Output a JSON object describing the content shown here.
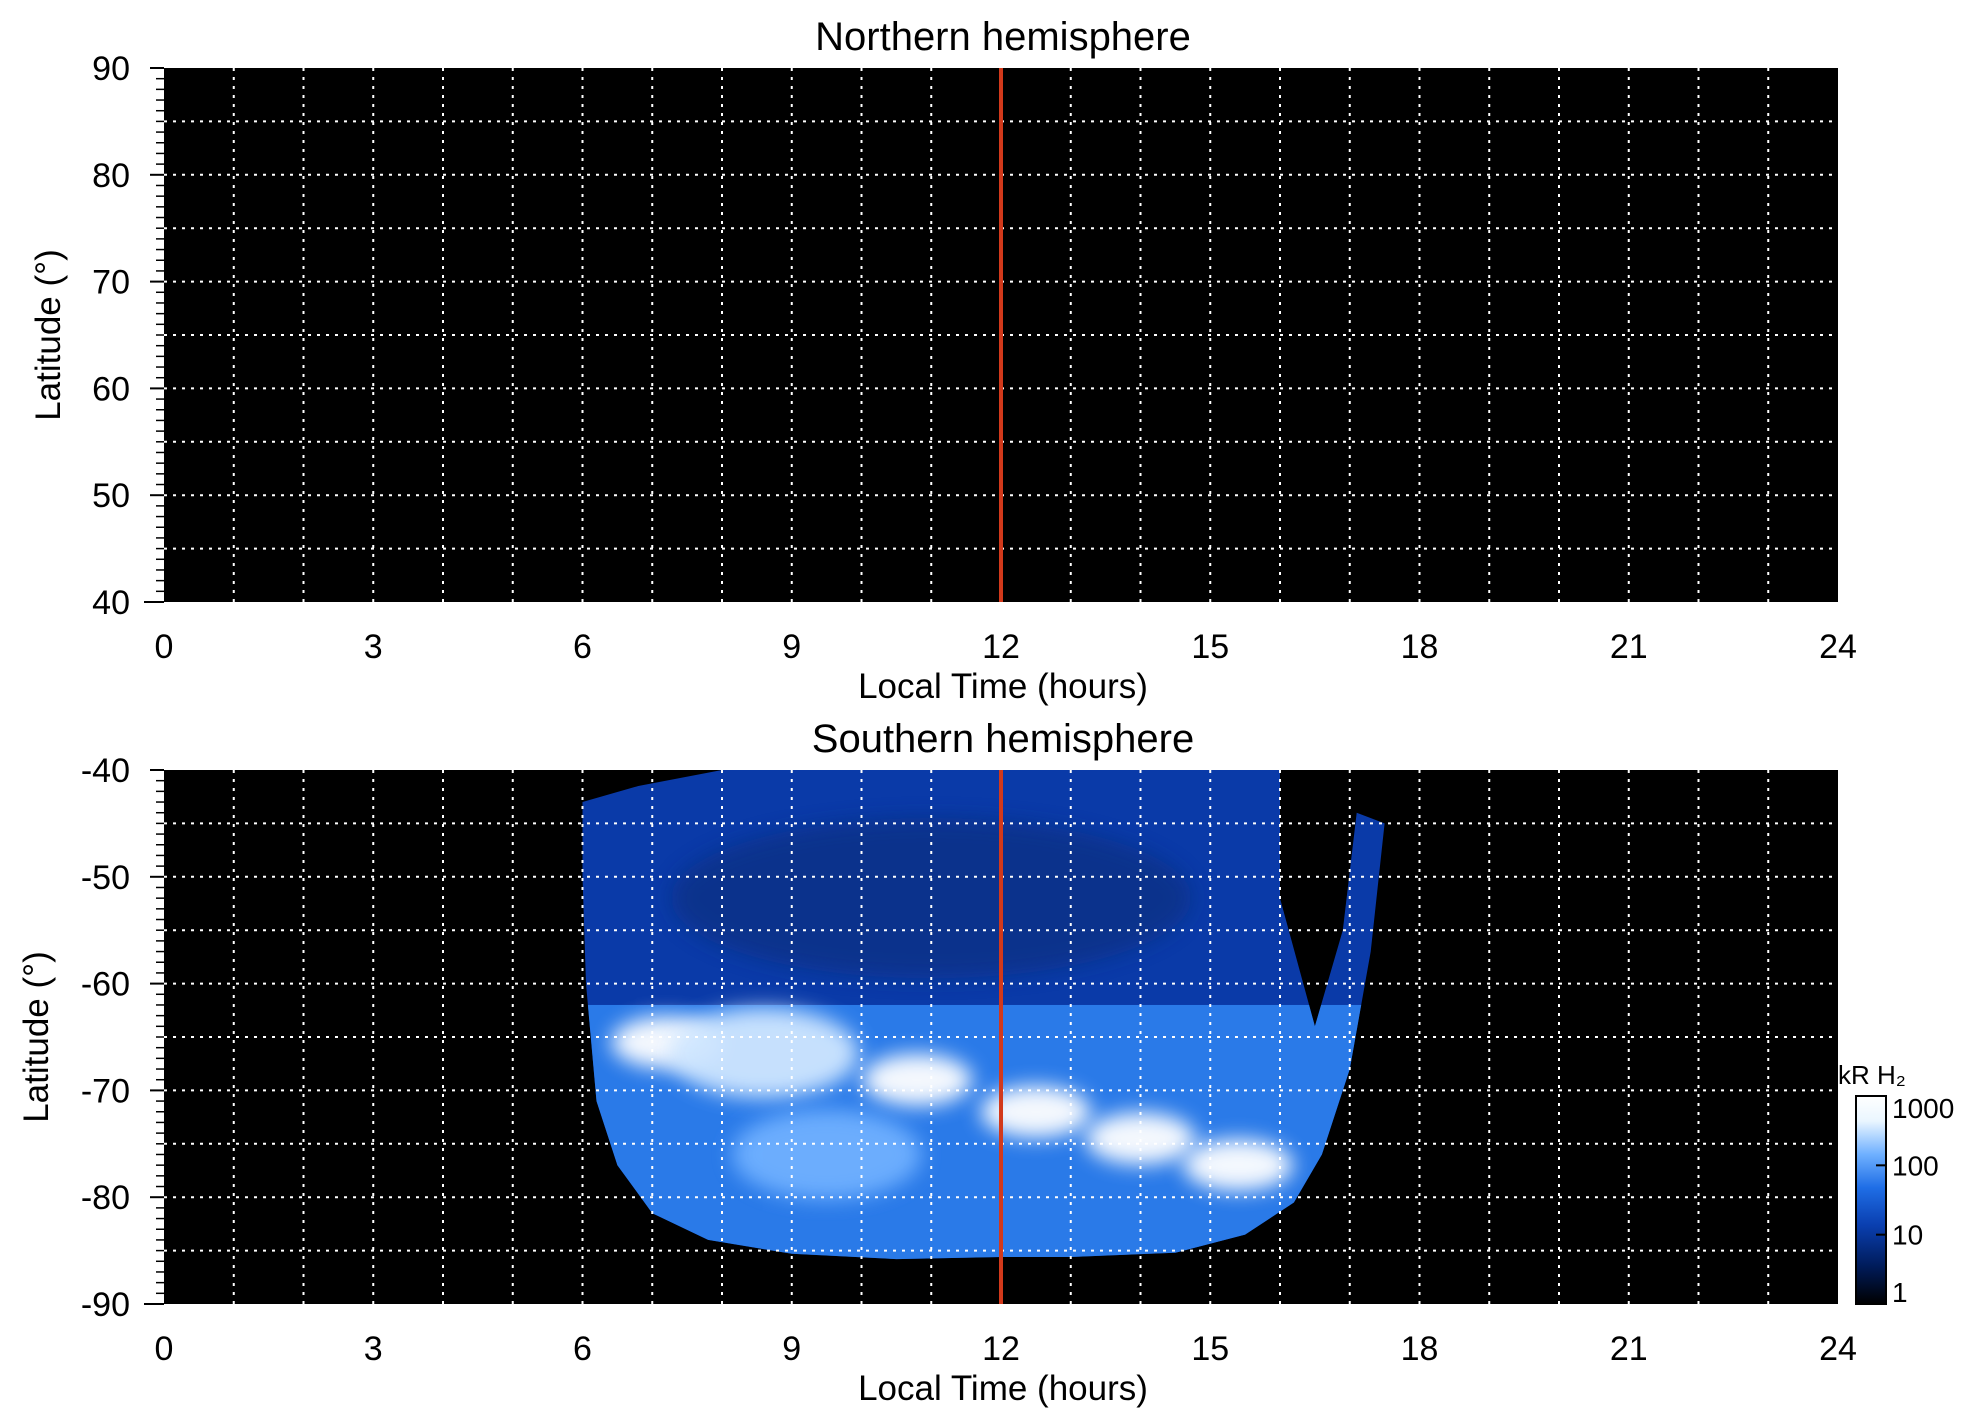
{
  "colors": {
    "background": "#000000",
    "grid": "#ffffff",
    "noon_line": "#d2391b",
    "colormap": [
      "#000000",
      "#001b59",
      "#0a3fb0",
      "#1f6ee6",
      "#6fb0ff",
      "#eaf6ff",
      "#ffffff"
    ]
  },
  "chart_data": [
    {
      "type": "heatmap",
      "title": "Northern hemisphere",
      "xlabel": "Local Time (hours)",
      "ylabel": "Latitude (°)",
      "xlim": [
        0,
        24
      ],
      "ylim": [
        40,
        90
      ],
      "xticks": [
        0,
        3,
        6,
        9,
        12,
        15,
        18,
        21,
        24
      ],
      "xtick_labels": [
        "0",
        "3",
        "6",
        "9",
        "12",
        "15",
        "18",
        "21",
        "24"
      ],
      "yticks": [
        40,
        50,
        60,
        70,
        80,
        90
      ],
      "ytick_labels": [
        "40",
        "50",
        "60",
        "70",
        "80",
        "90"
      ],
      "grid": true,
      "reference_line_x": 12,
      "emission": []
    },
    {
      "type": "heatmap",
      "title": "Southern hemisphere",
      "xlabel": "Local Time (hours)",
      "ylabel": "Latitude (°)",
      "xlim": [
        0,
        24
      ],
      "ylim": [
        -90,
        -40
      ],
      "xticks": [
        0,
        3,
        6,
        9,
        12,
        15,
        18,
        21,
        24
      ],
      "xtick_labels": [
        "0",
        "3",
        "6",
        "9",
        "12",
        "15",
        "18",
        "21",
        "24"
      ],
      "yticks": [
        -40,
        -50,
        -60,
        -70,
        -80,
        -90
      ],
      "ytick_labels": [
        "-40",
        "-50",
        "-60",
        "-70",
        "-80",
        "-90"
      ],
      "grid": true,
      "reference_line_x": 12,
      "coverage_boundary": [
        [
          6.0,
          -43.0
        ],
        [
          6.8,
          -41.5
        ],
        [
          8.0,
          -40.0
        ],
        [
          10.0,
          -40.0
        ],
        [
          12.0,
          -40.0
        ],
        [
          14.0,
          -40.0
        ],
        [
          15.5,
          -40.0
        ],
        [
          16.0,
          -40.0
        ],
        [
          16.0,
          -52.0
        ],
        [
          16.5,
          -64.0
        ],
        [
          16.9,
          -55.0
        ],
        [
          17.1,
          -44.0
        ],
        [
          17.5,
          -45.0
        ],
        [
          17.3,
          -57.0
        ],
        [
          17.0,
          -68.0
        ],
        [
          16.6,
          -76.0
        ],
        [
          16.2,
          -80.5
        ],
        [
          15.5,
          -83.5
        ],
        [
          14.5,
          -85.2
        ],
        [
          13.0,
          -85.6
        ],
        [
          12.0,
          -85.6
        ],
        [
          10.5,
          -85.8
        ],
        [
          9.0,
          -85.3
        ],
        [
          7.8,
          -84.0
        ],
        [
          7.0,
          -81.5
        ],
        [
          6.5,
          -77.0
        ],
        [
          6.2,
          -71.0
        ],
        [
          6.05,
          -60.0
        ],
        [
          6.0,
          -50.0
        ]
      ],
      "emission": [
        {
          "local_time": 7.2,
          "latitude": -65.5,
          "brightness_kR": 1000
        },
        {
          "local_time": 8.6,
          "latitude": -66.5,
          "brightness_kR": 500
        },
        {
          "local_time": 10.8,
          "latitude": -69.0,
          "brightness_kR": 1000
        },
        {
          "local_time": 12.5,
          "latitude": -72.0,
          "brightness_kR": 700
        },
        {
          "local_time": 14.0,
          "latitude": -74.5,
          "brightness_kR": 1000
        },
        {
          "local_time": 15.4,
          "latitude": -77.0,
          "brightness_kR": 1000
        },
        {
          "local_time": 9.5,
          "latitude": -76.0,
          "brightness_kR": 250
        },
        {
          "local_time": 11.0,
          "latitude": -52.0,
          "brightness_kR": 20
        }
      ]
    }
  ],
  "colorbar": {
    "title": "kR H₂",
    "scale": "log",
    "range": [
      1,
      1000
    ],
    "ticks": [
      1,
      10,
      100,
      1000
    ],
    "tick_labels": [
      "1",
      "10",
      "100",
      "1000"
    ]
  }
}
